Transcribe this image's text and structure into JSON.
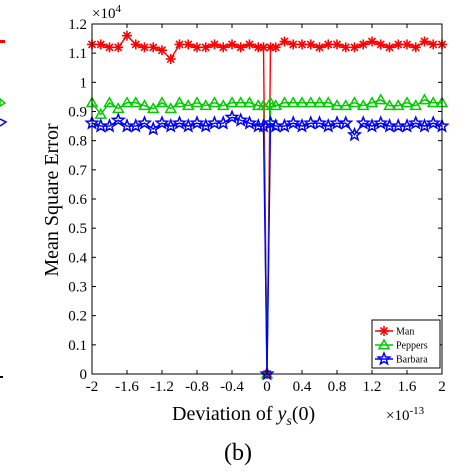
{
  "chart_data": {
    "type": "line",
    "panel_label": "(b)",
    "ylabel": "Mean Square Error",
    "xlabel_prefix": "Deviation of ",
    "xlabel_var": "y",
    "xlabel_sub": "s",
    "xlabel_suffix": "(0)",
    "x_multiplier": "×10",
    "x_multiplier_exp": "-13",
    "y_multiplier": "×10",
    "y_multiplier_exp": "4",
    "xlim": [
      -2,
      2
    ],
    "ylim": [
      0,
      1.2
    ],
    "x_ticks": [
      -2,
      -1.6,
      -1.2,
      -0.8,
      -0.4,
      0,
      0.4,
      0.8,
      1.2,
      1.6,
      2
    ],
    "x_tick_labels": [
      "-2",
      "-1.6",
      "-1.2",
      "-0.8",
      "-0.4",
      "0",
      "0.4",
      "0.8",
      "1.2",
      "1.6",
      "2"
    ],
    "y_ticks": [
      0,
      0.1,
      0.2,
      0.3,
      0.4,
      0.5,
      0.6,
      0.7,
      0.8,
      0.9,
      1,
      1.1,
      1.2
    ],
    "y_tick_labels": [
      "0",
      "0.1",
      "0.2",
      "0.3",
      "0.4",
      "0.5",
      "0.6",
      "0.7",
      "0.8",
      "0.9",
      "1",
      "1.1",
      "1.2"
    ],
    "grid": false,
    "legend_position": "bottom-right",
    "x": [
      -2,
      -1.9,
      -1.8,
      -1.7,
      -1.6,
      -1.5,
      -1.4,
      -1.3,
      -1.2,
      -1.1,
      -1.0,
      -0.9,
      -0.8,
      -0.7,
      -0.6,
      -0.5,
      -0.4,
      -0.3,
      -0.2,
      -0.1,
      -0.04,
      0,
      0.04,
      0.1,
      0.2,
      0.3,
      0.4,
      0.5,
      0.6,
      0.7,
      0.8,
      0.9,
      1.0,
      1.1,
      1.2,
      1.3,
      1.4,
      1.5,
      1.6,
      1.7,
      1.8,
      1.9,
      2.0
    ],
    "series": [
      {
        "name": "Man",
        "color": "#ff0000",
        "marker": "asterisk",
        "values": [
          1.13,
          1.13,
          1.12,
          1.12,
          1.16,
          1.13,
          1.12,
          1.12,
          1.11,
          1.08,
          1.13,
          1.13,
          1.12,
          1.12,
          1.13,
          1.12,
          1.13,
          1.12,
          1.13,
          1.12,
          1.12,
          0,
          1.12,
          1.12,
          1.14,
          1.13,
          1.13,
          1.13,
          1.12,
          1.13,
          1.13,
          1.12,
          1.12,
          1.13,
          1.14,
          1.13,
          1.12,
          1.13,
          1.13,
          1.12,
          1.14,
          1.13,
          1.13
        ]
      },
      {
        "name": "Peppers",
        "color": "#00cc00",
        "marker": "triangle",
        "values": [
          0.93,
          0.89,
          0.93,
          0.91,
          0.93,
          0.93,
          0.92,
          0.91,
          0.93,
          0.91,
          0.93,
          0.92,
          0.93,
          0.92,
          0.93,
          0.92,
          0.93,
          0.93,
          0.93,
          0.92,
          0.92,
          0,
          0.93,
          0.92,
          0.93,
          0.93,
          0.93,
          0.93,
          0.93,
          0.93,
          0.92,
          0.92,
          0.93,
          0.92,
          0.93,
          0.94,
          0.92,
          0.92,
          0.93,
          0.92,
          0.94,
          0.93,
          0.93
        ]
      },
      {
        "name": "Barbara",
        "color": "#0000ff",
        "marker": "star",
        "values": [
          0.86,
          0.85,
          0.85,
          0.87,
          0.85,
          0.85,
          0.86,
          0.84,
          0.86,
          0.85,
          0.86,
          0.85,
          0.86,
          0.85,
          0.86,
          0.86,
          0.88,
          0.87,
          0.86,
          0.85,
          0.85,
          0,
          0.86,
          0.85,
          0.85,
          0.86,
          0.85,
          0.86,
          0.86,
          0.85,
          0.86,
          0.86,
          0.82,
          0.86,
          0.85,
          0.86,
          0.85,
          0.85,
          0.85,
          0.86,
          0.85,
          0.86,
          0.85
        ]
      }
    ]
  }
}
